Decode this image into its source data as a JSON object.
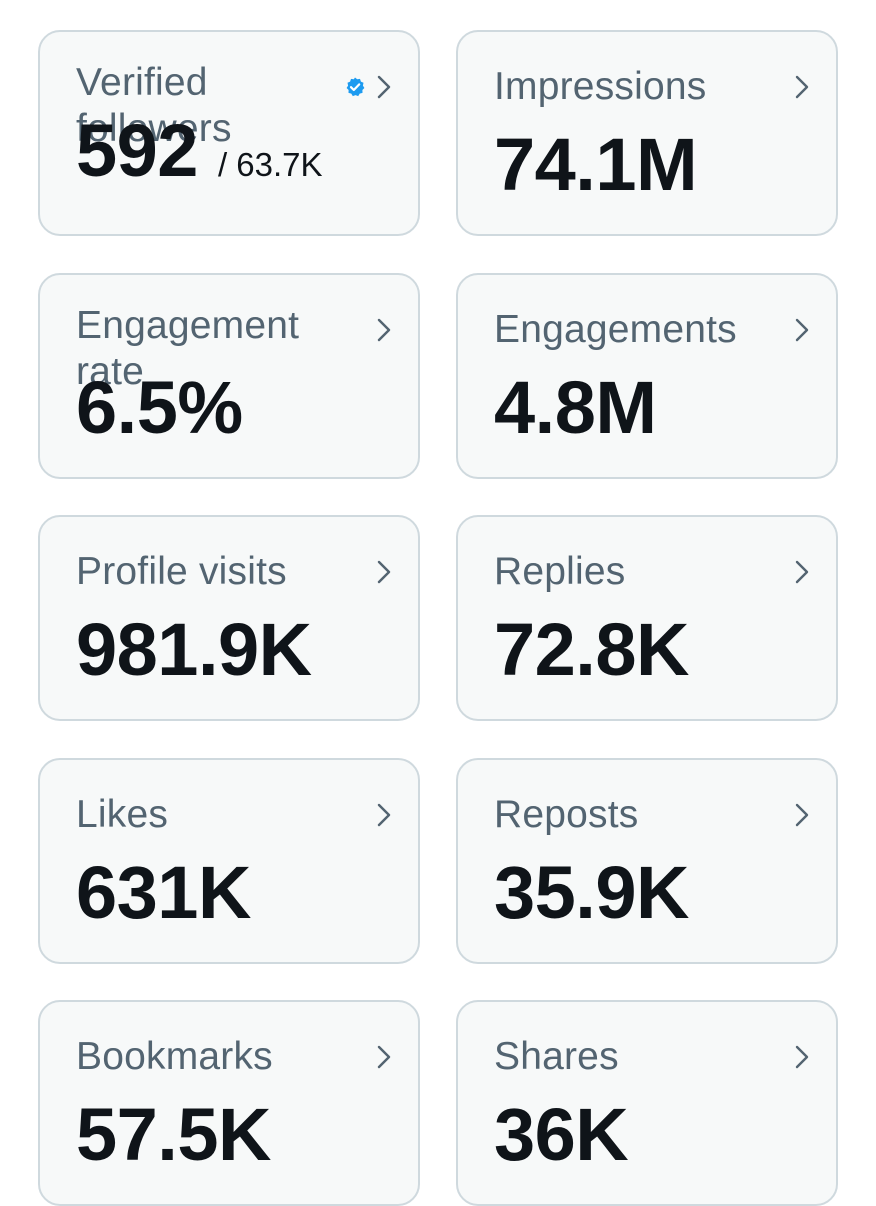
{
  "colors": {
    "card_background": "#f7f9f9",
    "card_border": "#cfd9de",
    "label_text": "#536471",
    "value_text": "#0f1419",
    "verified_badge": "#1d9bf0",
    "chevron": "#536471"
  },
  "icons": {
    "chevron": "chevron-right-icon",
    "verified": "verified-badge-icon"
  },
  "metrics": {
    "verified_followers": {
      "label": "Verified followers",
      "value": "592",
      "secondary": "/ 63.7K"
    },
    "impressions": {
      "label": "Impressions",
      "value": "74.1M"
    },
    "engagement_rate": {
      "label": "Engagement rate",
      "value": "6.5%"
    },
    "engagements": {
      "label": "Engagements",
      "value": "4.8M"
    },
    "profile_visits": {
      "label": "Profile visits",
      "value": "981.9K"
    },
    "replies": {
      "label": "Replies",
      "value": "72.8K"
    },
    "likes": {
      "label": "Likes",
      "value": "631K"
    },
    "reposts": {
      "label": "Reposts",
      "value": "35.9K"
    },
    "bookmarks": {
      "label": "Bookmarks",
      "value": "57.5K"
    },
    "shares": {
      "label": "Shares",
      "value": "36K"
    }
  }
}
